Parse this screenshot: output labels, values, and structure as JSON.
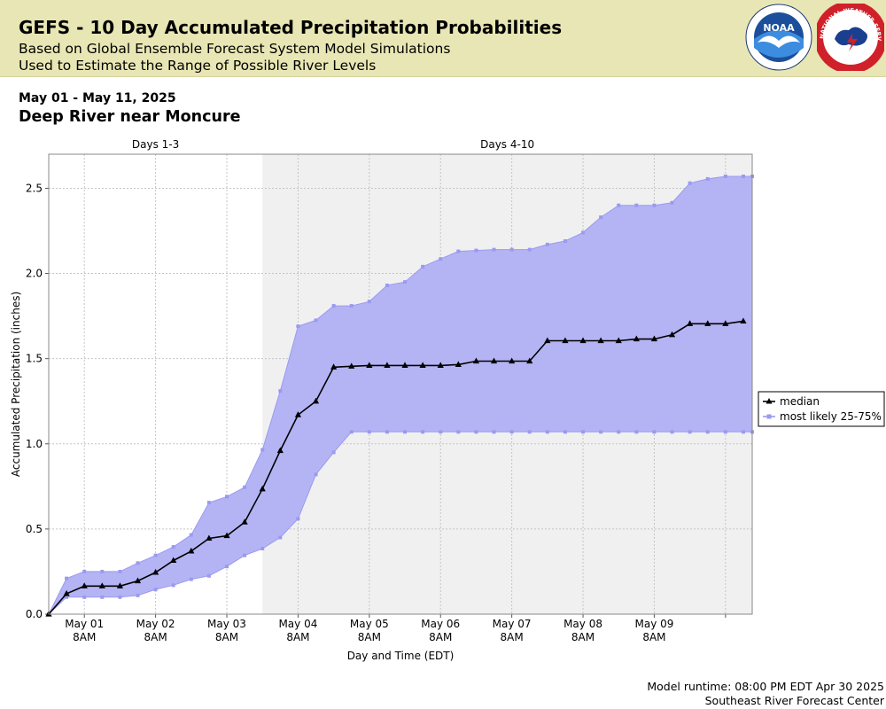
{
  "header": {
    "title": "GEFS - 10 Day Accumulated Precipitation Probabilities",
    "subtitle1": "Based on Global Ensemble Forecast System Model Simulations",
    "subtitle2": "Used to Estimate the Range of Possible River Levels",
    "noaa_logo_text": "NOAA",
    "nws_logo_text": "NATIONAL WEATHER SERVICE"
  },
  "date_range": "May 01 - May 11, 2025",
  "location": "Deep River near Moncure",
  "footer": {
    "runtime": "Model runtime: 08:00 PM EDT Apr 30 2025",
    "center": "Southeast River Forecast Center"
  },
  "colors": {
    "banner": "#e8e6b4",
    "band_fill": "#b4b4f5",
    "band_line": "#9a9af0",
    "median": "#000000",
    "shade": "#f0f0f0"
  },
  "chart_data": {
    "type": "line",
    "xlabel": "Day and Time (EDT)",
    "ylabel": "Accumulated Precipitation (inches)",
    "ylim": [
      0,
      2.7
    ],
    "yticks": [
      "0.0",
      "0.5",
      "1.0",
      "1.5",
      "2.0",
      "2.5"
    ],
    "grid": true,
    "legend_position": "right",
    "periods": [
      {
        "label": "Days 1-3",
        "start_hour": 0,
        "end_hour": 72,
        "shaded": false
      },
      {
        "label": "Days 4-10",
        "start_hour": 72,
        "end_hour": 237,
        "shaded": true
      }
    ],
    "x_axis_hours": [
      0,
      237
    ],
    "xtick_labels": [
      {
        "hour": 12,
        "line1": "May 01",
        "line2": "8AM"
      },
      {
        "hour": 36,
        "line1": "May 02",
        "line2": "8AM"
      },
      {
        "hour": 60,
        "line1": "May 03",
        "line2": "8AM"
      },
      {
        "hour": 84,
        "line1": "May 04",
        "line2": "8AM"
      },
      {
        "hour": 108,
        "line1": "May 05",
        "line2": "8AM"
      },
      {
        "hour": 132,
        "line1": "May 06",
        "line2": "8AM"
      },
      {
        "hour": 156,
        "line1": "May 07",
        "line2": "8AM"
      },
      {
        "hour": 180,
        "line1": "May 08",
        "line2": "8AM"
      },
      {
        "hour": 204,
        "line1": "May 09",
        "line2": "8AM"
      }
    ],
    "extra_tick_hours": [
      228
    ],
    "series": [
      {
        "name": "median",
        "x_hours": [
          0,
          6,
          12,
          18,
          24,
          30,
          36,
          42,
          48,
          54,
          60,
          66,
          72,
          78,
          84,
          90,
          96,
          102,
          108,
          114,
          120,
          126,
          132,
          138,
          144,
          150,
          156,
          162,
          168,
          174,
          180,
          186,
          192,
          198,
          204,
          210,
          216,
          222,
          228,
          234
        ],
        "values": [
          0.0,
          0.12,
          0.165,
          0.165,
          0.165,
          0.195,
          0.245,
          0.315,
          0.37,
          0.445,
          0.46,
          0.54,
          0.735,
          0.96,
          1.17,
          1.25,
          1.45,
          1.455,
          1.46,
          1.46,
          1.46,
          1.46,
          1.46,
          1.465,
          1.485,
          1.485,
          1.485,
          1.485,
          1.605,
          1.605,
          1.605,
          1.605,
          1.605,
          1.615,
          1.615,
          1.64,
          1.705,
          1.705,
          1.705,
          1.72
        ]
      },
      {
        "name": "most likely 25-75%",
        "x_hours": [
          0,
          6,
          12,
          18,
          24,
          30,
          36,
          42,
          48,
          54,
          60,
          66,
          72,
          78,
          84,
          90,
          96,
          102,
          108,
          114,
          120,
          126,
          132,
          138,
          144,
          150,
          156,
          162,
          168,
          174,
          180,
          186,
          192,
          198,
          204,
          210,
          216,
          222,
          228,
          234,
          237
        ],
        "upper": [
          0.0,
          0.21,
          0.25,
          0.25,
          0.25,
          0.3,
          0.345,
          0.395,
          0.465,
          0.655,
          0.69,
          0.745,
          0.965,
          1.31,
          1.69,
          1.725,
          1.81,
          1.81,
          1.835,
          1.93,
          1.95,
          2.04,
          2.085,
          2.13,
          2.135,
          2.14,
          2.14,
          2.14,
          2.17,
          2.19,
          2.24,
          2.33,
          2.4,
          2.4,
          2.4,
          2.415,
          2.53,
          2.555,
          2.57,
          2.57,
          2.57
        ],
        "lower": [
          0.0,
          0.1,
          0.1,
          0.1,
          0.1,
          0.11,
          0.145,
          0.17,
          0.205,
          0.225,
          0.28,
          0.345,
          0.385,
          0.45,
          0.56,
          0.82,
          0.95,
          1.07,
          1.07,
          1.07,
          1.07,
          1.07,
          1.07,
          1.07,
          1.07,
          1.07,
          1.07,
          1.07,
          1.07,
          1.07,
          1.07,
          1.07,
          1.07,
          1.07,
          1.07,
          1.07,
          1.07,
          1.07,
          1.07,
          1.07,
          1.07
        ]
      }
    ]
  }
}
